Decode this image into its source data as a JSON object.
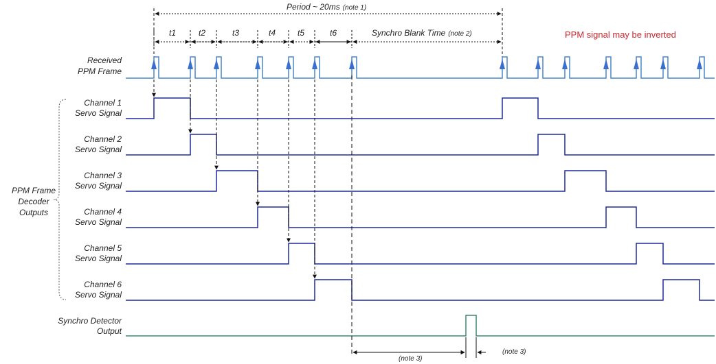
{
  "colors": {
    "ppm": "#4a86c8",
    "servo": "#1f2a9a",
    "synchro": "#3a8a6a",
    "arrow": "#3a6fd0",
    "note_red": "#c8282d",
    "dim": "#111111"
  },
  "header": {
    "period_label": "Period ~ 20ms",
    "period_note": "(note 1)",
    "intervals": [
      "t1",
      "t2",
      "t3",
      "t4",
      "t5",
      "t6"
    ],
    "blank_label": "Synchro Blank Time",
    "blank_note": "(note 2)",
    "inverted_note": "PPM signal may be inverted"
  },
  "signals": {
    "ppm": [
      "Received",
      "PPM Frame"
    ],
    "channels": [
      [
        "Channel 1",
        "Servo Signal"
      ],
      [
        "Channel 2",
        "Servo Signal"
      ],
      [
        "Channel 3",
        "Servo Signal"
      ],
      [
        "Channel 4",
        "Servo Signal"
      ],
      [
        "Channel 5",
        "Servo Signal"
      ],
      [
        "Channel 6",
        "Servo Signal"
      ]
    ],
    "synchro": [
      "Synchro Detector",
      "Output"
    ]
  },
  "group_label": [
    "PPM Frame",
    "Decoder",
    "Outputs"
  ],
  "bottom_notes": {
    "left": "(note 3)",
    "right": "(note 3)"
  }
}
